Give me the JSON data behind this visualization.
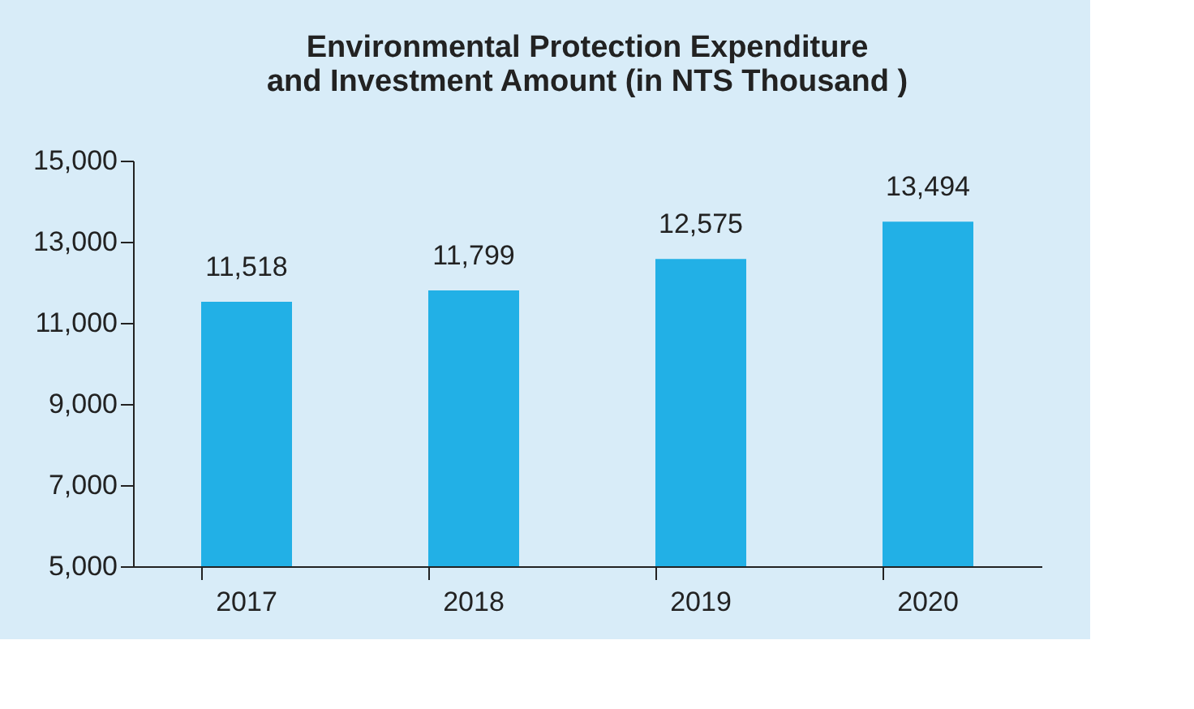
{
  "chart_data": {
    "type": "bar",
    "title": "Environmental Protection Expenditure\nand Investment Amount (in NTS Thousand )",
    "categories": [
      "2017",
      "2018",
      "2019",
      "2020"
    ],
    "values": [
      11518,
      11799,
      12575,
      13494
    ],
    "color": "#22b0e6",
    "value_labels": [
      "11,518",
      "11,799",
      "12,575",
      "13,494"
    ],
    "ylim": [
      5000,
      15000
    ],
    "yticks": [
      {
        "value": 5000,
        "label": "5,000"
      },
      {
        "value": 7000,
        "label": "7,000"
      },
      {
        "value": 9000,
        "label": "9,000"
      },
      {
        "value": 11000,
        "label": "11,000"
      },
      {
        "value": 13000,
        "label": "13,000"
      },
      {
        "value": 15000,
        "label": "15,000"
      }
    ],
    "grid": false
  }
}
